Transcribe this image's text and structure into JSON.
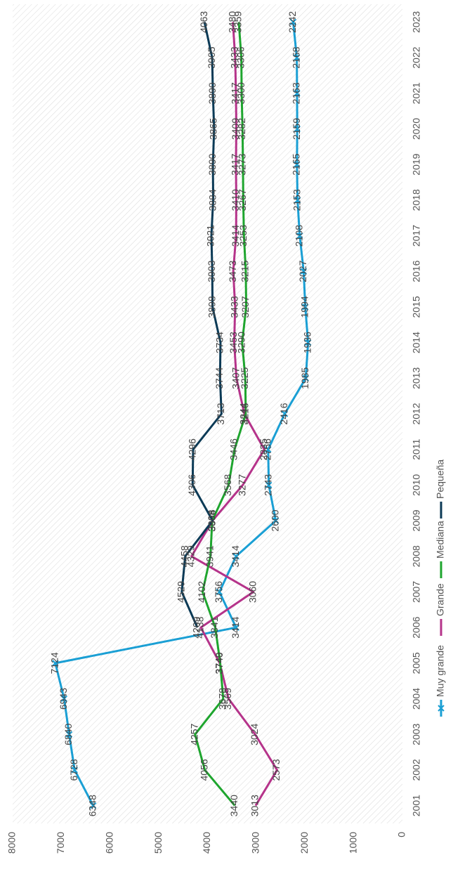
{
  "chart_data": {
    "type": "line",
    "orientation": "rotated-90-clockwise",
    "title": "",
    "xlabel": "",
    "ylabel": "",
    "categories": [
      "2001",
      "2002",
      "2003",
      "2004",
      "2005",
      "2006",
      "2007",
      "2008",
      "2009",
      "2010",
      "2011",
      "2012",
      "2013",
      "2014",
      "2015",
      "2016",
      "2017",
      "2018",
      "2019",
      "2020",
      "2021",
      "2022",
      "2023"
    ],
    "ylim": [
      0,
      8000
    ],
    "yticks": [
      "0",
      "1000",
      "2000",
      "3000",
      "4000",
      "5000",
      "6000",
      "7000",
      "8000"
    ],
    "grid": false,
    "background": "diagonal-hatch",
    "legend_position": "bottom",
    "series": [
      {
        "name": "Muy grande",
        "color": "#1a9fd4",
        "marker": "x",
        "values": [
          6348,
          6728,
          6840,
          6943,
          7124,
          3414,
          3756,
          3414,
          2600,
          2743,
          2756,
          2416,
          1985,
          1936,
          1994,
          2027,
          2108,
          2153,
          2165,
          2159,
          2163,
          2168,
          2242
        ],
        "labels": [
          "6348",
          "6728",
          "6840",
          "6943",
          "7124",
          "3414",
          "3756",
          "3414",
          "2600",
          "2743",
          "2756",
          "2416",
          "1985",
          "1936",
          "1994",
          "2027",
          "2108",
          "2153",
          "2165",
          "2159",
          "2163",
          "2168",
          "2242"
        ]
      },
      {
        "name": "Grande",
        "color": "#b5338a",
        "marker": "none",
        "values": [
          3013,
          2573,
          3024,
          3569,
          3749,
          4138,
          3060,
          4329,
          3898,
          3277,
          2835,
          3244,
          3407,
          3453,
          3433,
          3473,
          3414,
          3410,
          3417,
          3409,
          3417,
          3433,
          3480
        ],
        "labels": [
          "3013",
          "2573",
          "3024",
          "3569",
          "3749",
          "4138",
          "3060",
          "4329",
          "3898",
          "3277",
          "2835",
          "3244",
          "3407",
          "3453",
          "3433",
          "3473",
          "3414",
          "3410",
          "3417",
          "3409",
          "3417",
          "3433",
          "3480"
        ]
      },
      {
        "name": "Mediana",
        "color": "#1ea52e",
        "marker": "none",
        "values": [
          3440,
          4056,
          4257,
          3678,
          3740,
          3841,
          4102,
          3941,
          3904,
          3568,
          3446,
          3216,
          3225,
          3290,
          3207,
          3215,
          3253,
          3267,
          3273,
          3282,
          3300,
          3306,
          3359
        ],
        "labels": [
          "3440",
          "4056",
          "4257",
          "3678",
          "3740",
          "3841",
          "4102",
          "3941",
          "3904",
          "3568",
          "3446",
          "3216",
          "3225",
          "3290",
          "3207",
          "3215",
          "3253",
          "3267",
          "3273",
          "3282",
          "3300",
          "3306",
          "3359"
        ]
      },
      {
        "name": "Pequeña",
        "color": "#0b3a56",
        "marker": "none",
        "values": [
          null,
          null,
          null,
          null,
          null,
          4209,
          4529,
          4458,
          3896,
          4306,
          4296,
          3713,
          3744,
          3734,
          3898,
          3903,
          3921,
          3884,
          3890,
          3865,
          3890,
          3905,
          4063
        ],
        "labels": [
          "",
          "",
          "",
          "",
          "",
          "4209",
          "4529",
          "4458",
          "3896",
          "4306",
          "4296",
          "3713",
          "3744",
          "3734",
          "3898",
          "3903",
          "3921",
          "3884",
          "3890",
          "3865",
          "3890",
          "3905",
          "4063"
        ]
      }
    ]
  }
}
